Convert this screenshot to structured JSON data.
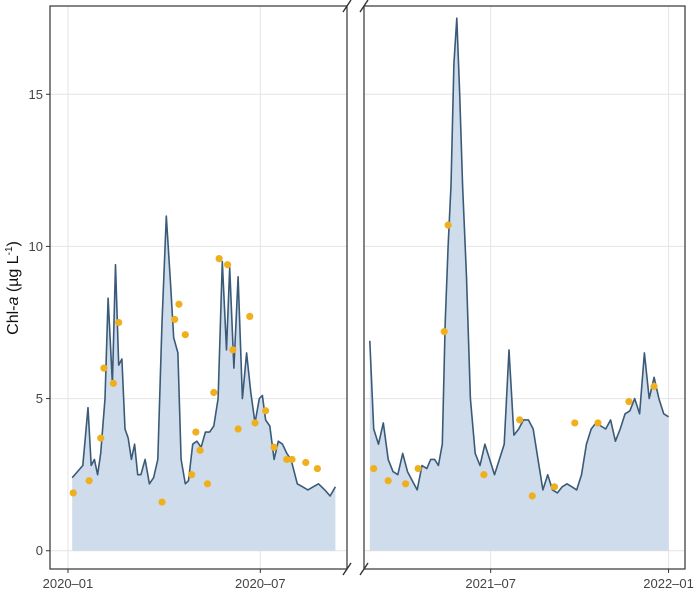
{
  "chart_data": {
    "type": "area",
    "ylabel": {
      "prefix": "Chl-",
      "italic": "a",
      "unit": " (µg L",
      "sup": "-1",
      "close": ")"
    },
    "ylim": [
      -0.6,
      17.9
    ],
    "yticks": [
      0,
      5,
      10,
      15
    ],
    "ytick_labels": [
      "0",
      "5",
      "10",
      "15"
    ],
    "grid": true,
    "axis_break": true,
    "colors": {
      "line": "#3a5a78",
      "area": "#cfdceb",
      "points": "#f0b01e",
      "grid": "#e4e4e4",
      "frame": "#333333"
    },
    "panels": [
      {
        "xlim": [
          "2019-12-15",
          "2020-09-21"
        ],
        "xticks": [
          "2020-01-01",
          "2020-07-01"
        ],
        "xtick_labels": [
          "2020–01",
          "2020–07"
        ],
        "series": [
          {
            "name": "",
            "type": "line",
            "x": [
              "2020-01-05",
              "2020-01-10",
              "2020-01-15",
              "2020-01-20",
              "2020-01-23",
              "2020-01-26",
              "2020-01-29",
              "2020-02-01",
              "2020-02-05",
              "2020-02-08",
              "2020-02-12",
              "2020-02-15",
              "2020-02-18",
              "2020-02-21",
              "2020-02-24",
              "2020-02-27",
              "2020-03-01",
              "2020-03-04",
              "2020-03-07",
              "2020-03-10",
              "2020-03-14",
              "2020-03-18",
              "2020-03-22",
              "2020-03-26",
              "2020-03-30",
              "2020-04-03",
              "2020-04-07",
              "2020-04-10",
              "2020-04-14",
              "2020-04-17",
              "2020-04-21",
              "2020-04-24",
              "2020-04-28",
              "2020-05-02",
              "2020-05-06",
              "2020-05-10",
              "2020-05-14",
              "2020-05-18",
              "2020-05-22",
              "2020-05-26",
              "2020-05-30",
              "2020-06-02",
              "2020-06-06",
              "2020-06-10",
              "2020-06-14",
              "2020-06-18",
              "2020-06-22",
              "2020-06-26",
              "2020-06-30",
              "2020-07-03",
              "2020-07-06",
              "2020-07-10",
              "2020-07-14",
              "2020-07-18",
              "2020-07-22",
              "2020-07-26",
              "2020-07-30",
              "2020-08-05",
              "2020-08-10",
              "2020-08-15",
              "2020-08-20",
              "2020-08-25",
              "2020-08-31",
              "2020-09-05",
              "2020-09-10"
            ],
            "y": [
              2.4,
              2.6,
              2.8,
              4.7,
              2.8,
              3.0,
              2.5,
              3.2,
              5.0,
              8.3,
              5.5,
              9.4,
              6.1,
              6.3,
              4.0,
              3.7,
              3.0,
              3.5,
              2.5,
              2.5,
              3.0,
              2.2,
              2.4,
              3.0,
              7.5,
              11.0,
              8.8,
              7.0,
              6.5,
              3.0,
              2.2,
              2.3,
              3.5,
              3.6,
              3.4,
              3.9,
              3.9,
              4.1,
              5.0,
              9.5,
              6.6,
              9.3,
              6.0,
              9.0,
              5.0,
              6.5,
              5.2,
              4.2,
              5.0,
              5.1,
              4.3,
              4.1,
              3.0,
              3.6,
              3.5,
              3.2,
              3.0,
              2.2,
              2.1,
              2.0,
              2.1,
              2.2,
              2.0,
              1.8,
              2.1
            ]
          },
          {
            "name": "",
            "type": "scatter",
            "x": [
              "2020-01-06",
              "2020-01-21",
              "2020-02-01",
              "2020-02-04",
              "2020-02-13",
              "2020-02-18",
              "2020-03-30",
              "2020-04-11",
              "2020-04-15",
              "2020-04-21",
              "2020-04-27",
              "2020-05-01",
              "2020-05-05",
              "2020-05-12",
              "2020-05-18",
              "2020-05-23",
              "2020-05-31",
              "2020-06-05",
              "2020-06-10",
              "2020-06-21",
              "2020-06-26",
              "2020-07-06",
              "2020-07-14",
              "2020-07-26",
              "2020-07-31",
              "2020-08-13",
              "2020-08-24"
            ],
            "y": [
              1.9,
              2.3,
              3.7,
              6.0,
              5.5,
              7.5,
              1.6,
              7.6,
              8.1,
              7.1,
              2.5,
              3.9,
              3.3,
              2.2,
              5.2,
              9.6,
              9.4,
              6.6,
              4.0,
              7.7,
              4.2,
              4.6,
              3.4,
              3.0,
              3.0,
              2.9,
              2.7
            ]
          }
        ]
      },
      {
        "xlim": [
          "2021-02-20",
          "2022-01-18"
        ],
        "xticks": [
          "2021-07-01",
          "2022-01-01"
        ],
        "xtick_labels": [
          "2021–07",
          "2022–01"
        ],
        "series": [
          {
            "name": "",
            "type": "line",
            "x": [
              "2021-02-26",
              "2021-03-02",
              "2021-03-07",
              "2021-03-12",
              "2021-03-17",
              "2021-03-22",
              "2021-03-27",
              "2021-04-01",
              "2021-04-06",
              "2021-04-11",
              "2021-04-16",
              "2021-04-21",
              "2021-04-26",
              "2021-04-30",
              "2021-05-04",
              "2021-05-08",
              "2021-05-12",
              "2021-05-15",
              "2021-05-18",
              "2021-05-21",
              "2021-05-24",
              "2021-05-27",
              "2021-05-30",
              "2021-06-02",
              "2021-06-06",
              "2021-06-10",
              "2021-06-15",
              "2021-06-20",
              "2021-06-25",
              "2021-06-30",
              "2021-07-05",
              "2021-07-10",
              "2021-07-15",
              "2021-07-20",
              "2021-07-25",
              "2021-07-30",
              "2021-08-04",
              "2021-08-09",
              "2021-08-14",
              "2021-08-19",
              "2021-08-24",
              "2021-08-29",
              "2021-09-03",
              "2021-09-08",
              "2021-09-13",
              "2021-09-18",
              "2021-09-23",
              "2021-09-28",
              "2021-10-03",
              "2021-10-08",
              "2021-10-13",
              "2021-10-18",
              "2021-10-23",
              "2021-10-28",
              "2021-11-02",
              "2021-11-07",
              "2021-11-12",
              "2021-11-17",
              "2021-11-22",
              "2021-11-27",
              "2021-12-02",
              "2021-12-07",
              "2021-12-12",
              "2021-12-17",
              "2021-12-22",
              "2021-12-27",
              "2022-01-01"
            ],
            "y": [
              6.9,
              4.0,
              3.5,
              4.2,
              3.0,
              2.6,
              2.5,
              3.2,
              2.6,
              2.3,
              2.0,
              2.8,
              2.7,
              3.0,
              3.0,
              2.8,
              3.5,
              7.5,
              10.0,
              12.0,
              16.0,
              17.5,
              15.0,
              12.0,
              9.0,
              5.0,
              3.2,
              2.8,
              3.5,
              3.0,
              2.5,
              3.0,
              3.5,
              6.6,
              3.8,
              4.0,
              4.3,
              4.3,
              4.0,
              3.0,
              2.0,
              2.5,
              2.0,
              1.9,
              2.1,
              2.2,
              2.1,
              2.0,
              2.5,
              3.5,
              4.0,
              4.2,
              4.1,
              4.0,
              4.3,
              3.6,
              4.0,
              4.5,
              4.6,
              5.0,
              4.5,
              6.5,
              5.0,
              5.7,
              5.0,
              4.5,
              4.4
            ]
          },
          {
            "name": "",
            "type": "scatter",
            "x": [
              "2021-03-02",
              "2021-03-17",
              "2021-04-04",
              "2021-04-17",
              "2021-05-14",
              "2021-05-18",
              "2021-06-24",
              "2021-07-31",
              "2021-08-13",
              "2021-09-05",
              "2021-09-26",
              "2021-10-20",
              "2021-11-21",
              "2021-12-17"
            ],
            "y": [
              2.7,
              2.3,
              2.2,
              2.7,
              7.2,
              10.7,
              2.5,
              4.3,
              1.8,
              2.1,
              4.2,
              4.2,
              4.9,
              5.4
            ]
          }
        ]
      }
    ]
  }
}
